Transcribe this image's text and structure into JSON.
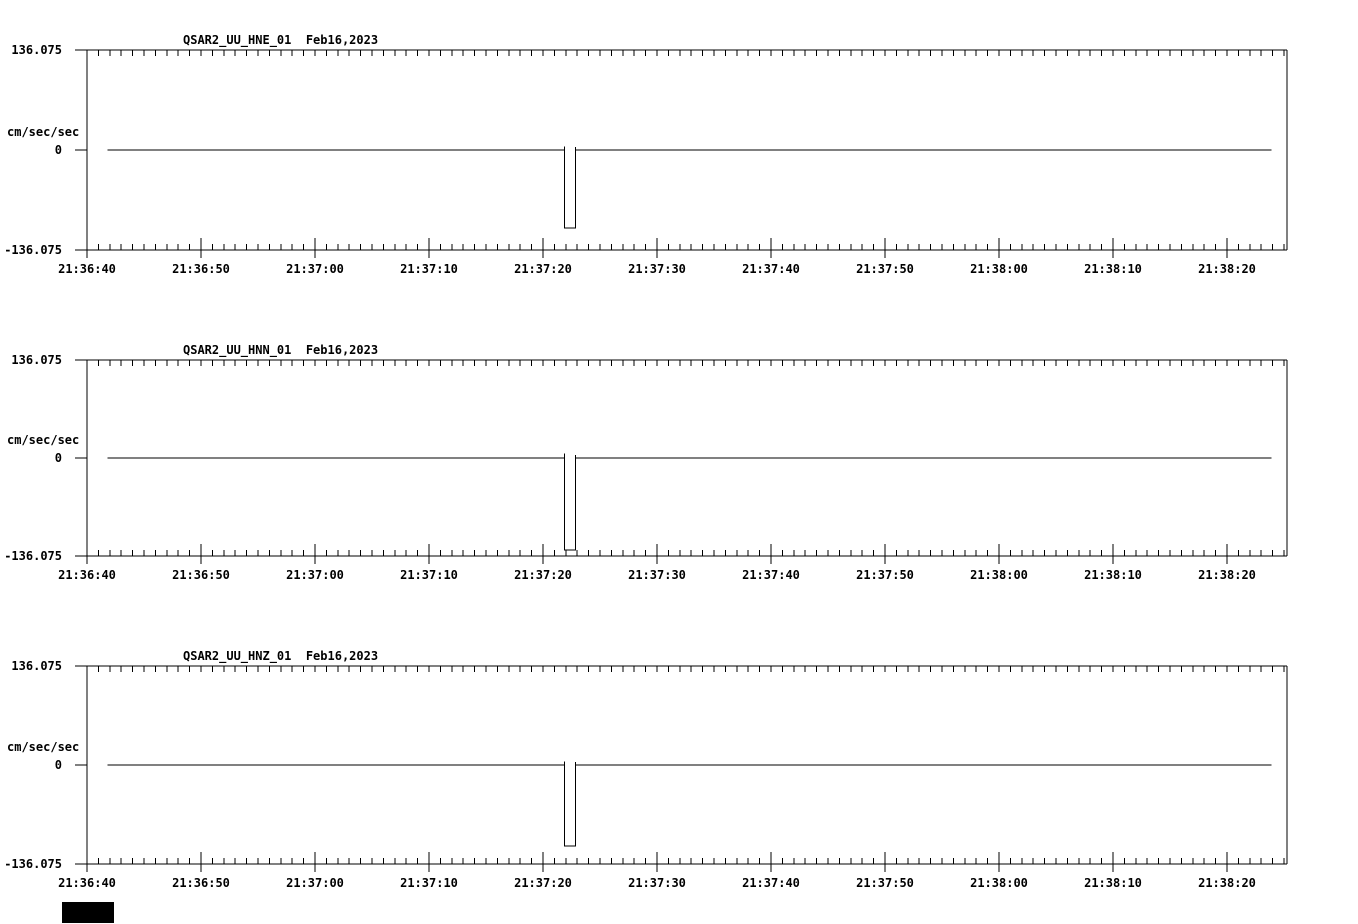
{
  "figure": {
    "background_color": "#ffffff",
    "line_color": "#000000",
    "cursor_block_color": "#000000"
  },
  "chart_data": {
    "type": "line",
    "description": "Three stacked seismic acceleration traces, flat at 0 with a one-second negative pulse near 21:37:22",
    "y_axis": {
      "units": "cm/sec/sec",
      "max": 136.075,
      "min": -136.075,
      "tick_labels": [
        "136.075",
        "0",
        "-136.075"
      ]
    },
    "x_axis": {
      "tick_labels": [
        "21:36:40",
        "21:36:50",
        "21:37:00",
        "21:37:10",
        "21:37:20",
        "21:37:30",
        "21:37:40",
        "21:37:50",
        "21:38:00",
        "21:38:10",
        "21:38:20"
      ],
      "major_interval_s": 10,
      "minor_interval_s": 1,
      "span_s": 105,
      "grid": false
    },
    "panels": [
      {
        "title": "QSAR2_UU_HNE_01  Feb16,2023",
        "station": "QSAR2_UU_HNE_01",
        "date": "Feb16,2023",
        "pulse_time": "21:37:22",
        "peak_value_cm_s2": -106,
        "samples_t_v": [
          [
            1.8,
            0
          ],
          [
            41.9,
            0
          ],
          [
            41.9,
            5
          ],
          [
            41.9,
            -106
          ],
          [
            42.85,
            -106
          ],
          [
            42.85,
            4
          ],
          [
            42.85,
            0
          ],
          [
            103.9,
            0
          ]
        ]
      },
      {
        "title": "QSAR2_UU_HNN_01  Feb16,2023",
        "station": "QSAR2_UU_HNN_01",
        "date": "Feb16,2023",
        "pulse_time": "21:37:22",
        "peak_value_cm_s2": -128,
        "samples_t_v": [
          [
            1.8,
            0
          ],
          [
            41.9,
            0
          ],
          [
            41.9,
            6
          ],
          [
            41.9,
            -128
          ],
          [
            42.85,
            -128
          ],
          [
            42.85,
            4
          ],
          [
            42.85,
            0
          ],
          [
            103.9,
            0
          ]
        ]
      },
      {
        "title": "QSAR2_UU_HNZ_01  Feb16,2023",
        "station": "QSAR2_UU_HNZ_01",
        "date": "Feb16,2023",
        "pulse_time": "21:37:22",
        "peak_value_cm_s2": -111,
        "samples_t_v": [
          [
            1.8,
            0
          ],
          [
            41.9,
            0
          ],
          [
            41.9,
            5
          ],
          [
            41.9,
            -111
          ],
          [
            42.85,
            -111
          ],
          [
            42.85,
            4
          ],
          [
            42.85,
            0
          ],
          [
            103.9,
            0
          ]
        ]
      }
    ]
  }
}
